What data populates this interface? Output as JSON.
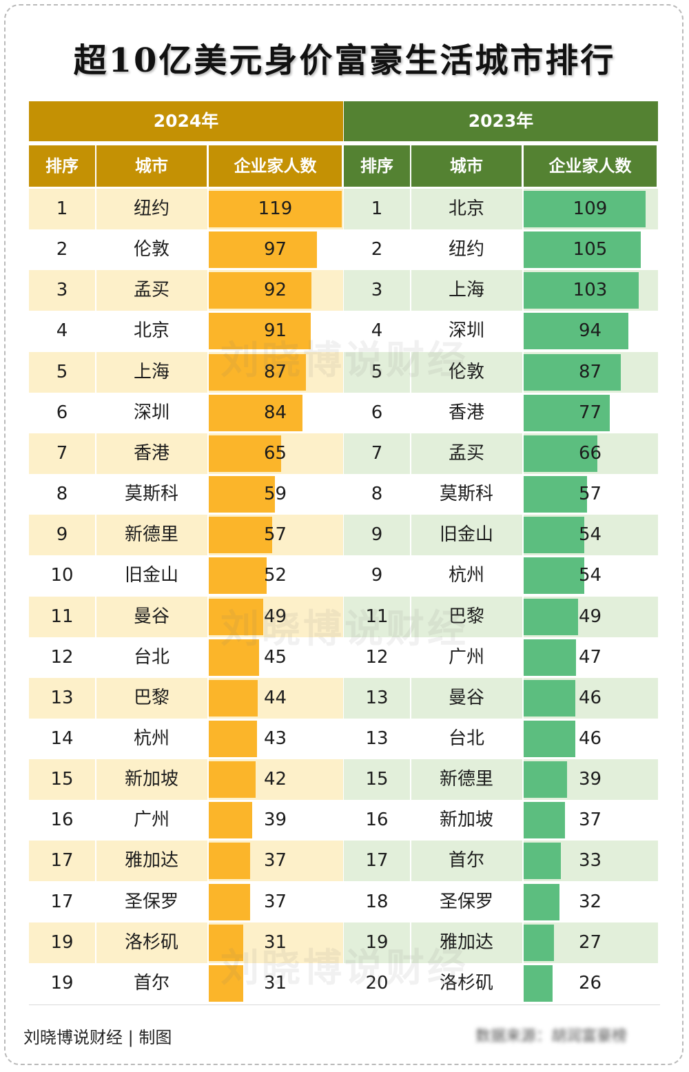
{
  "title": "超10亿美元身价富豪生活城市排行",
  "chart_data": {
    "type": "table",
    "title": "超10亿美元身价富豪生活城市排行",
    "columns": [
      "排序",
      "城市",
      "企业家人数"
    ],
    "tables": [
      {
        "year": "2024年",
        "rows": [
          {
            "rank": "1",
            "city": "纽约",
            "count": 119
          },
          {
            "rank": "2",
            "city": "伦敦",
            "count": 97
          },
          {
            "rank": "3",
            "city": "孟买",
            "count": 92
          },
          {
            "rank": "4",
            "city": "北京",
            "count": 91
          },
          {
            "rank": "5",
            "city": "上海",
            "count": 87
          },
          {
            "rank": "6",
            "city": "深圳",
            "count": 84
          },
          {
            "rank": "7",
            "city": "香港",
            "count": 65
          },
          {
            "rank": "8",
            "city": "莫斯科",
            "count": 59
          },
          {
            "rank": "9",
            "city": "新德里",
            "count": 57
          },
          {
            "rank": "10",
            "city": "旧金山",
            "count": 52
          },
          {
            "rank": "11",
            "city": "曼谷",
            "count": 49
          },
          {
            "rank": "12",
            "city": "台北",
            "count": 45
          },
          {
            "rank": "13",
            "city": "巴黎",
            "count": 44
          },
          {
            "rank": "14",
            "city": "杭州",
            "count": 43
          },
          {
            "rank": "15",
            "city": "新加坡",
            "count": 42
          },
          {
            "rank": "16",
            "city": "广州",
            "count": 39
          },
          {
            "rank": "17",
            "city": "雅加达",
            "count": 37
          },
          {
            "rank": "17",
            "city": "圣保罗",
            "count": 37
          },
          {
            "rank": "19",
            "city": "洛杉矶",
            "count": 31
          },
          {
            "rank": "19",
            "city": "首尔",
            "count": 31
          }
        ]
      },
      {
        "year": "2023年",
        "rows": [
          {
            "rank": "1",
            "city": "北京",
            "count": 109
          },
          {
            "rank": "2",
            "city": "纽约",
            "count": 105
          },
          {
            "rank": "3",
            "city": "上海",
            "count": 103
          },
          {
            "rank": "4",
            "city": "深圳",
            "count": 94
          },
          {
            "rank": "5",
            "city": "伦敦",
            "count": 87
          },
          {
            "rank": "6",
            "city": "香港",
            "count": 77
          },
          {
            "rank": "7",
            "city": "孟买",
            "count": 66
          },
          {
            "rank": "8",
            "city": "莫斯科",
            "count": 57
          },
          {
            "rank": "9",
            "city": "旧金山",
            "count": 54
          },
          {
            "rank": "9",
            "city": "杭州",
            "count": 54
          },
          {
            "rank": "11",
            "city": "巴黎",
            "count": 49
          },
          {
            "rank": "12",
            "city": "广州",
            "count": 47
          },
          {
            "rank": "13",
            "city": "曼谷",
            "count": 46
          },
          {
            "rank": "13",
            "city": "台北",
            "count": 46
          },
          {
            "rank": "15",
            "city": "新德里",
            "count": 39
          },
          {
            "rank": "16",
            "city": "新加坡",
            "count": 37
          },
          {
            "rank": "17",
            "city": "首尔",
            "count": 33
          },
          {
            "rank": "18",
            "city": "圣保罗",
            "count": 32
          },
          {
            "rank": "19",
            "city": "雅加达",
            "count": 27
          },
          {
            "rank": "20",
            "city": "洛杉矶",
            "count": 26
          }
        ]
      }
    ],
    "bar_max": 119
  },
  "colors": {
    "gold_header": "#c49104",
    "gold_bar": "#fbb52a",
    "gold_row_light": "#fdf0c9",
    "green_header": "#548232",
    "green_bar": "#5cbe7f",
    "green_row_light": "#e2efda"
  },
  "watermark": "刘晓博说财经",
  "footer": {
    "credit": "刘晓博说财经 | 制图",
    "source": "数据来源：胡润富豪榜"
  }
}
